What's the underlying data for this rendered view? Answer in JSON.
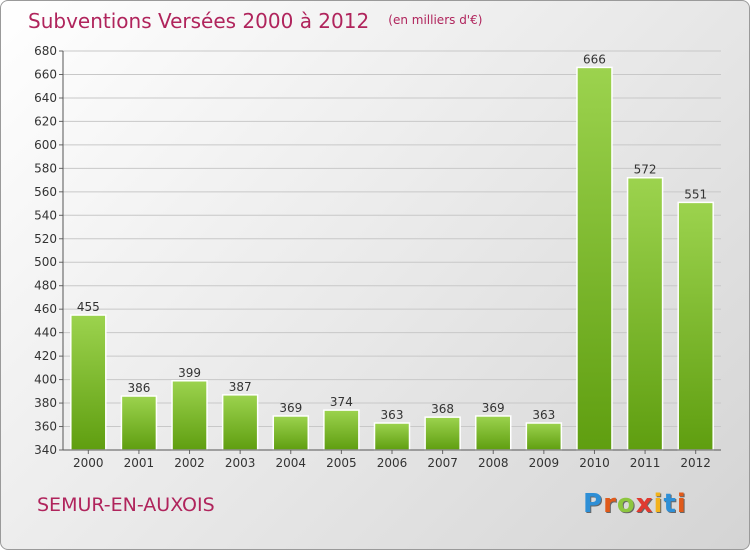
{
  "title": "Subventions Versées 2000 à 2012",
  "unit_label": "(en milliers d'€)",
  "town": "SEMUR-EN-AUXOIS",
  "logo": {
    "text": "Proxiti",
    "letter_colors": [
      "#2e8fd6",
      "#e05a1a",
      "#8dc63f",
      "#e03a30",
      "#f2b21c",
      "#2e8fd6",
      "#e05a1a"
    ]
  },
  "colors": {
    "bar_top": "#9cd34e",
    "bar_bottom": "#5f9e10",
    "title": "#b0245c"
  },
  "chart_data": {
    "type": "bar",
    "title": "Subventions Versées 2000 à 2012",
    "categories": [
      "2000",
      "2001",
      "2002",
      "2003",
      "2004",
      "2005",
      "2006",
      "2007",
      "2008",
      "2009",
      "2010",
      "2011",
      "2012"
    ],
    "values": [
      455,
      386,
      399,
      387,
      369,
      374,
      363,
      368,
      369,
      363,
      666,
      572,
      551
    ],
    "ylim": [
      340,
      680
    ],
    "yticks": [
      340,
      360,
      380,
      400,
      420,
      440,
      460,
      480,
      500,
      520,
      540,
      560,
      580,
      600,
      620,
      640,
      660,
      680
    ],
    "grid": true,
    "xlabel": "",
    "ylabel": ""
  }
}
